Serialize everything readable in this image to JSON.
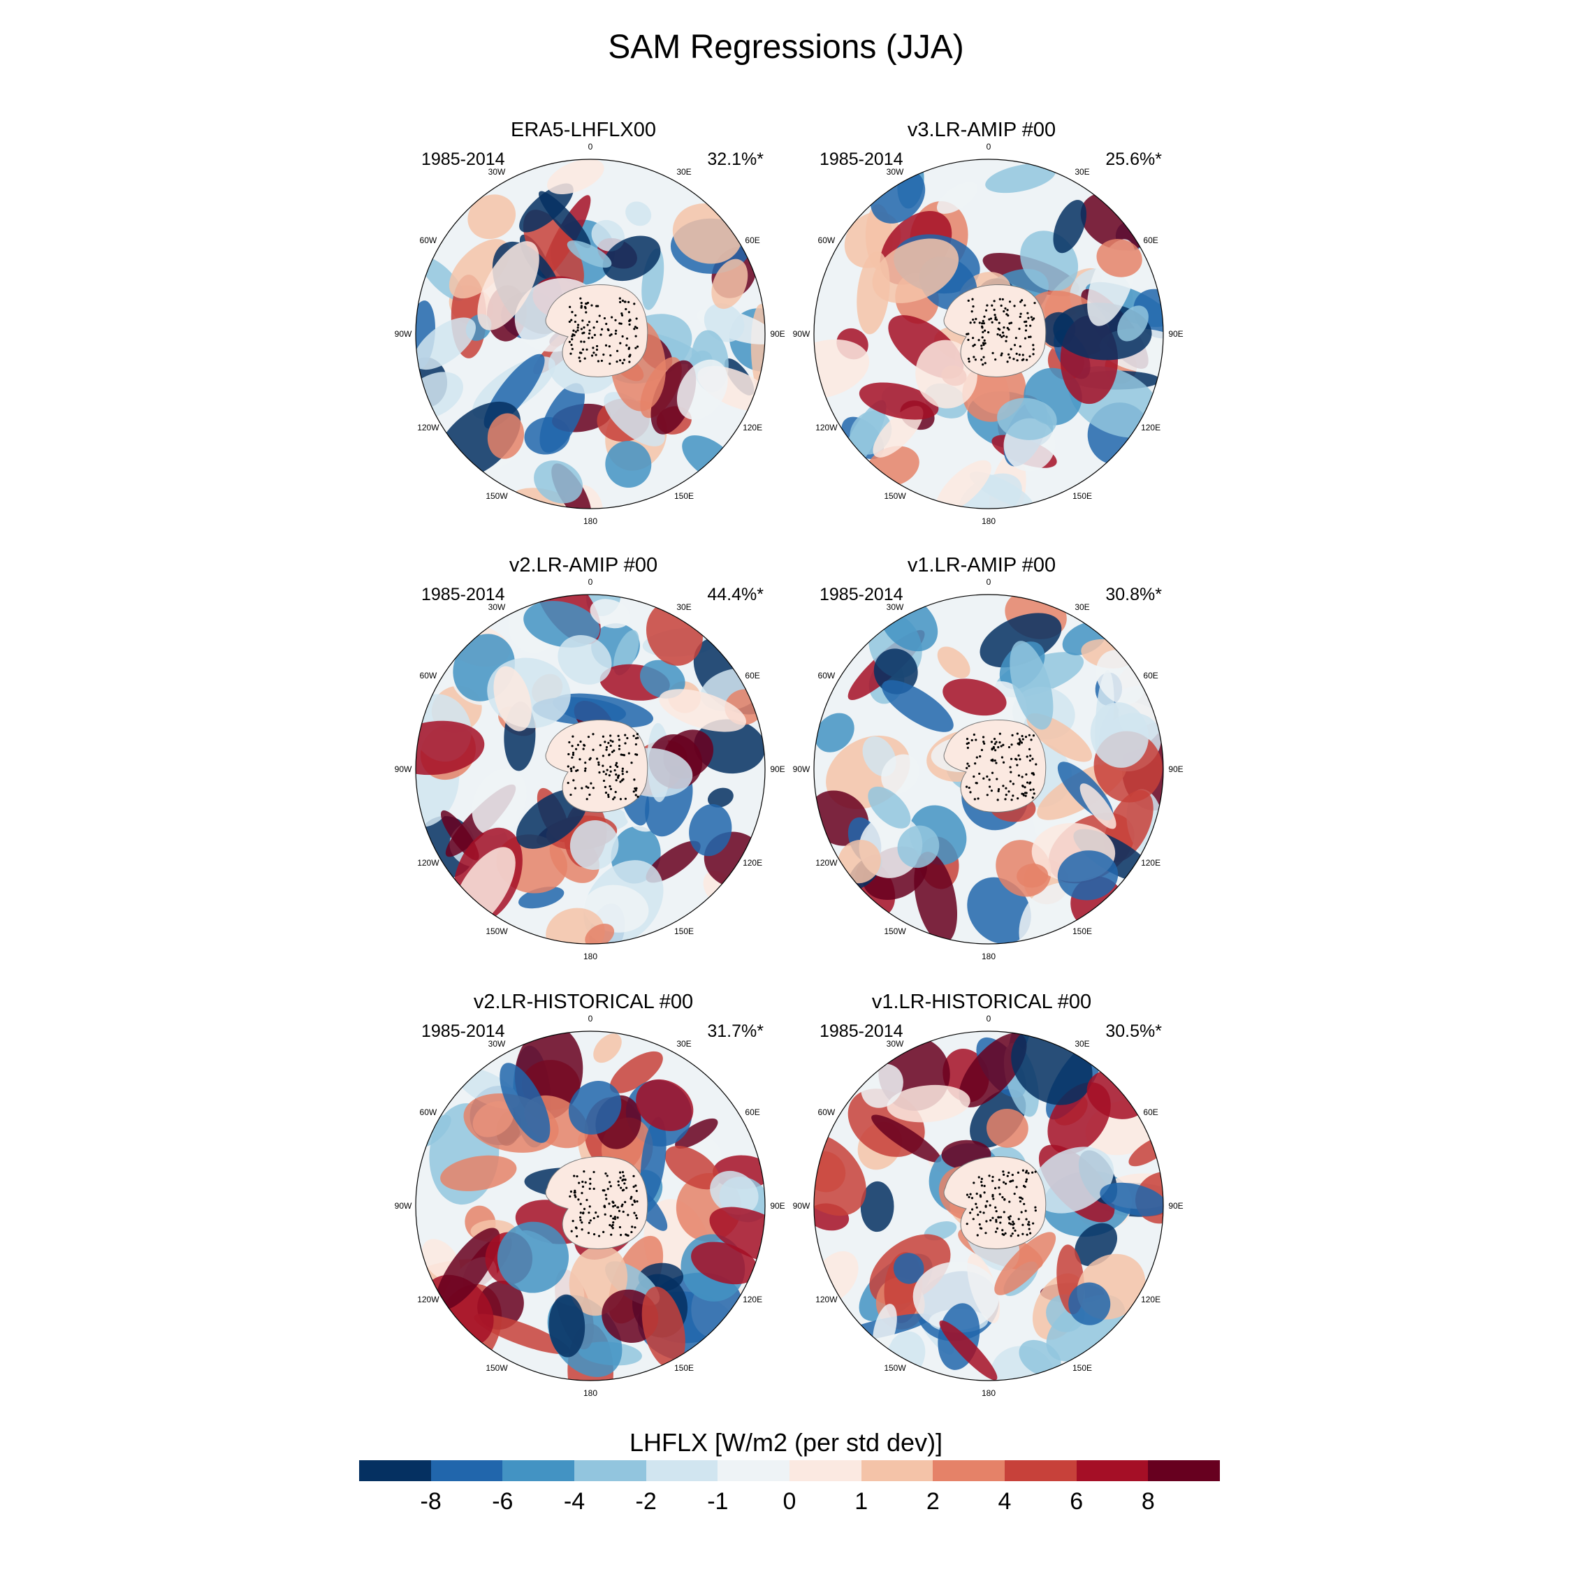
{
  "figure": {
    "title": "SAM Regressions (JJA)"
  },
  "lon_labels": [
    "0",
    "30E",
    "60E",
    "90E",
    "120E",
    "150E",
    "180",
    "150W",
    "120W",
    "90W",
    "60W",
    "30W"
  ],
  "panels": [
    {
      "title": "ERA5-LHFLX00",
      "period": "1985-2014",
      "percent": "32.1%*"
    },
    {
      "title": "v3.LR-AMIP  #00",
      "period": "1985-2014",
      "percent": "25.6%*"
    },
    {
      "title": "v2.LR-AMIP  #00",
      "period": "1985-2014",
      "percent": "44.4%*"
    },
    {
      "title": "v1.LR-AMIP  #00",
      "period": "1985-2014",
      "percent": "30.8%*"
    },
    {
      "title": "v2.LR-HISTORICAL  #00",
      "period": "1985-2014",
      "percent": "31.7%*"
    },
    {
      "title": "v1.LR-HISTORICAL  #00",
      "period": "1985-2014",
      "percent": "30.5%*"
    }
  ],
  "colorbar": {
    "title": "LHFLX [W/m2 (per std dev)]",
    "ticks": [
      "-8",
      "-6",
      "-4",
      "-2",
      "-1",
      "0",
      "1",
      "2",
      "4",
      "6",
      "8"
    ],
    "colors": [
      "#053061",
      "#2166ac",
      "#4393c3",
      "#92c5de",
      "#d1e5f0",
      "#eef3f6",
      "#fbe9e1",
      "#f4c3a8",
      "#e58268",
      "#c7413a",
      "#a50f26",
      "#67001f"
    ]
  }
}
